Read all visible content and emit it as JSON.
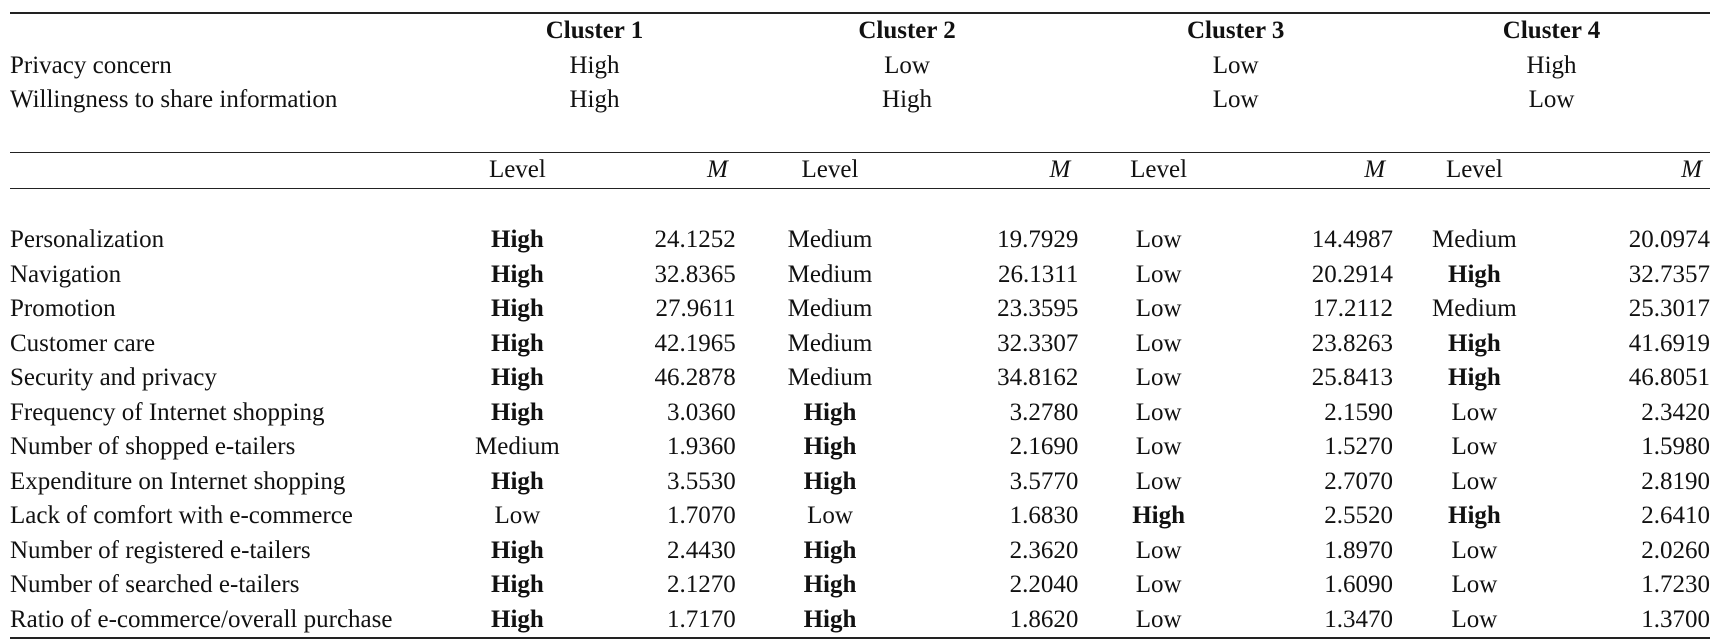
{
  "clusters": [
    {
      "name": "Cluster 1",
      "privacy_concern": "High",
      "willingness": "High"
    },
    {
      "name": "Cluster 2",
      "privacy_concern": "Low",
      "willingness": "High"
    },
    {
      "name": "Cluster 3",
      "privacy_concern": "Low",
      "willingness": "Low"
    },
    {
      "name": "Cluster 4",
      "privacy_concern": "High",
      "willingness": "Low"
    }
  ],
  "row_labels": {
    "privacy_concern": "Privacy concern",
    "willingness": "Willingness to share information"
  },
  "sub_headers": {
    "level": "Level",
    "mean": "M"
  },
  "rows": [
    {
      "label": "Personalization",
      "cells": [
        [
          "High",
          "24.1252"
        ],
        [
          "Medium",
          "19.7929"
        ],
        [
          "Low",
          "14.4987"
        ],
        [
          "Medium",
          "20.0974"
        ]
      ]
    },
    {
      "label": "Navigation",
      "cells": [
        [
          "High",
          "32.8365"
        ],
        [
          "Medium",
          "26.1311"
        ],
        [
          "Low",
          "20.2914"
        ],
        [
          "High",
          "32.7357"
        ]
      ]
    },
    {
      "label": "Promotion",
      "cells": [
        [
          "High",
          "27.9611"
        ],
        [
          "Medium",
          "23.3595"
        ],
        [
          "Low",
          "17.2112"
        ],
        [
          "Medium",
          "25.3017"
        ]
      ]
    },
    {
      "label": "Customer care",
      "cells": [
        [
          "High",
          "42.1965"
        ],
        [
          "Medium",
          "32.3307"
        ],
        [
          "Low",
          "23.8263"
        ],
        [
          "High",
          "41.6919"
        ]
      ]
    },
    {
      "label": "Security and privacy",
      "cells": [
        [
          "High",
          "46.2878"
        ],
        [
          "Medium",
          "34.8162"
        ],
        [
          "Low",
          "25.8413"
        ],
        [
          "High",
          "46.8051"
        ]
      ]
    },
    {
      "label": "Frequency of Internet shopping",
      "cells": [
        [
          "High",
          "3.0360"
        ],
        [
          "High",
          "3.2780"
        ],
        [
          "Low",
          "2.1590"
        ],
        [
          "Low",
          "2.3420"
        ]
      ]
    },
    {
      "label": "Number of shopped e-tailers",
      "cells": [
        [
          "Medium",
          "1.9360"
        ],
        [
          "High",
          "2.1690"
        ],
        [
          "Low",
          "1.5270"
        ],
        [
          "Low",
          "1.5980"
        ]
      ]
    },
    {
      "label": "Expenditure on Internet shopping",
      "cells": [
        [
          "High",
          "3.5530"
        ],
        [
          "High",
          "3.5770"
        ],
        [
          "Low",
          "2.7070"
        ],
        [
          "Low",
          "2.8190"
        ]
      ]
    },
    {
      "label": "Lack of comfort with e-commerce",
      "cells": [
        [
          "Low",
          "1.7070"
        ],
        [
          "Low",
          "1.6830"
        ],
        [
          "High",
          "2.5520"
        ],
        [
          "High",
          "2.6410"
        ]
      ]
    },
    {
      "label": "Number of registered e-tailers",
      "cells": [
        [
          "High",
          "2.4430"
        ],
        [
          "High",
          "2.3620"
        ],
        [
          "Low",
          "1.8970"
        ],
        [
          "Low",
          "2.0260"
        ]
      ]
    },
    {
      "label": "Number of searched e-tailers",
      "cells": [
        [
          "High",
          "2.1270"
        ],
        [
          "High",
          "2.2040"
        ],
        [
          "Low",
          "1.6090"
        ],
        [
          "Low",
          "1.7230"
        ]
      ]
    },
    {
      "label": "Ratio of e-commerce/overall purchase",
      "cells": [
        [
          "High",
          "1.7170"
        ],
        [
          "High",
          "1.8620"
        ],
        [
          "Low",
          "1.3470"
        ],
        [
          "Low",
          "1.3700"
        ]
      ]
    }
  ]
}
